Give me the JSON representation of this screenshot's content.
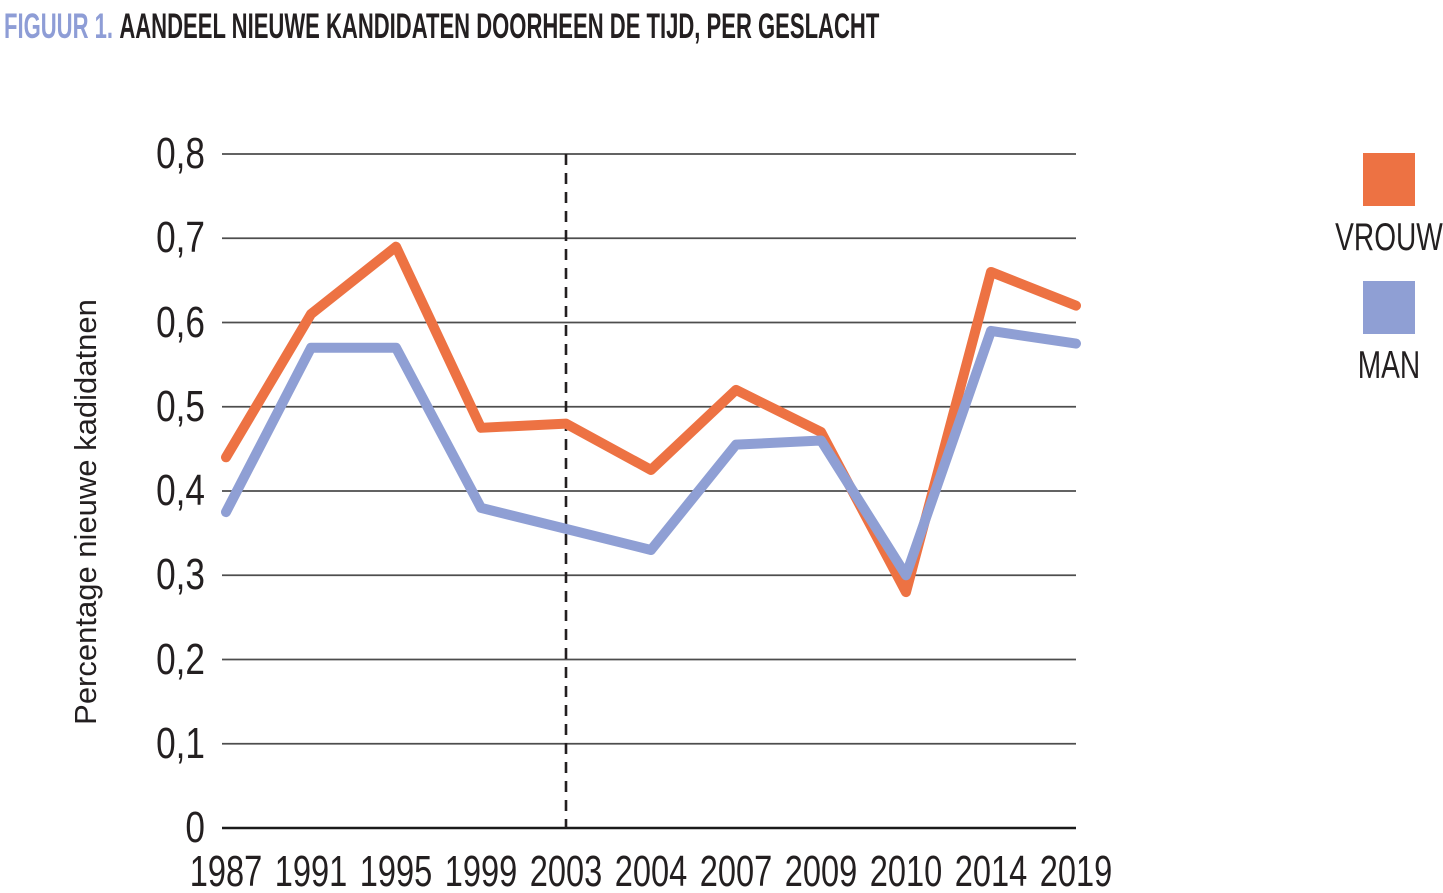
{
  "header": {
    "figure_label": "FIGUUR 1.",
    "title": "AANDEEL NIEUWE KANDIDATEN DOORHEEN DE TIJD, PER GESLACHT"
  },
  "colors": {
    "vrouw": "#ED7243",
    "man": "#8F9FD4",
    "figure_label_accent": "#8E9DD6",
    "gridline": "#4d4d4d",
    "axis_line": "#1a1a1a",
    "dashed_line": "#231f20",
    "text": "#231F20"
  },
  "chart_data": {
    "type": "line",
    "title": "FIGUUR 1. AANDEEL NIEUWE KANDIDATEN DOORHEEN DE TIJD, PER GESLACHT",
    "xlabel": "",
    "ylabel": "Percentage nieuwe kadidatnen",
    "categories": [
      "1987",
      "1991",
      "1995",
      "1999",
      "2003",
      "2004",
      "2007",
      "2009",
      "2010",
      "2014",
      "2019"
    ],
    "series": [
      {
        "name": "VROUW",
        "color": "#ED7243",
        "values": [
          0.44,
          0.61,
          0.69,
          0.475,
          0.48,
          0.425,
          0.52,
          0.47,
          0.28,
          0.66,
          0.62
        ]
      },
      {
        "name": "MAN",
        "color": "#8F9FD4",
        "values": [
          0.375,
          0.57,
          0.57,
          0.38,
          0.355,
          0.33,
          0.455,
          0.46,
          0.3,
          0.59,
          0.575
        ]
      }
    ],
    "ylim": [
      0,
      0.8
    ],
    "ytick_labels": [
      "0",
      "0,1",
      "0,2",
      "0,3",
      "0,4",
      "0,5",
      "0,6",
      "0,7",
      "0,8"
    ],
    "grid": "horizontal",
    "dashed_vline_category": "2003",
    "legend_position": "right"
  }
}
